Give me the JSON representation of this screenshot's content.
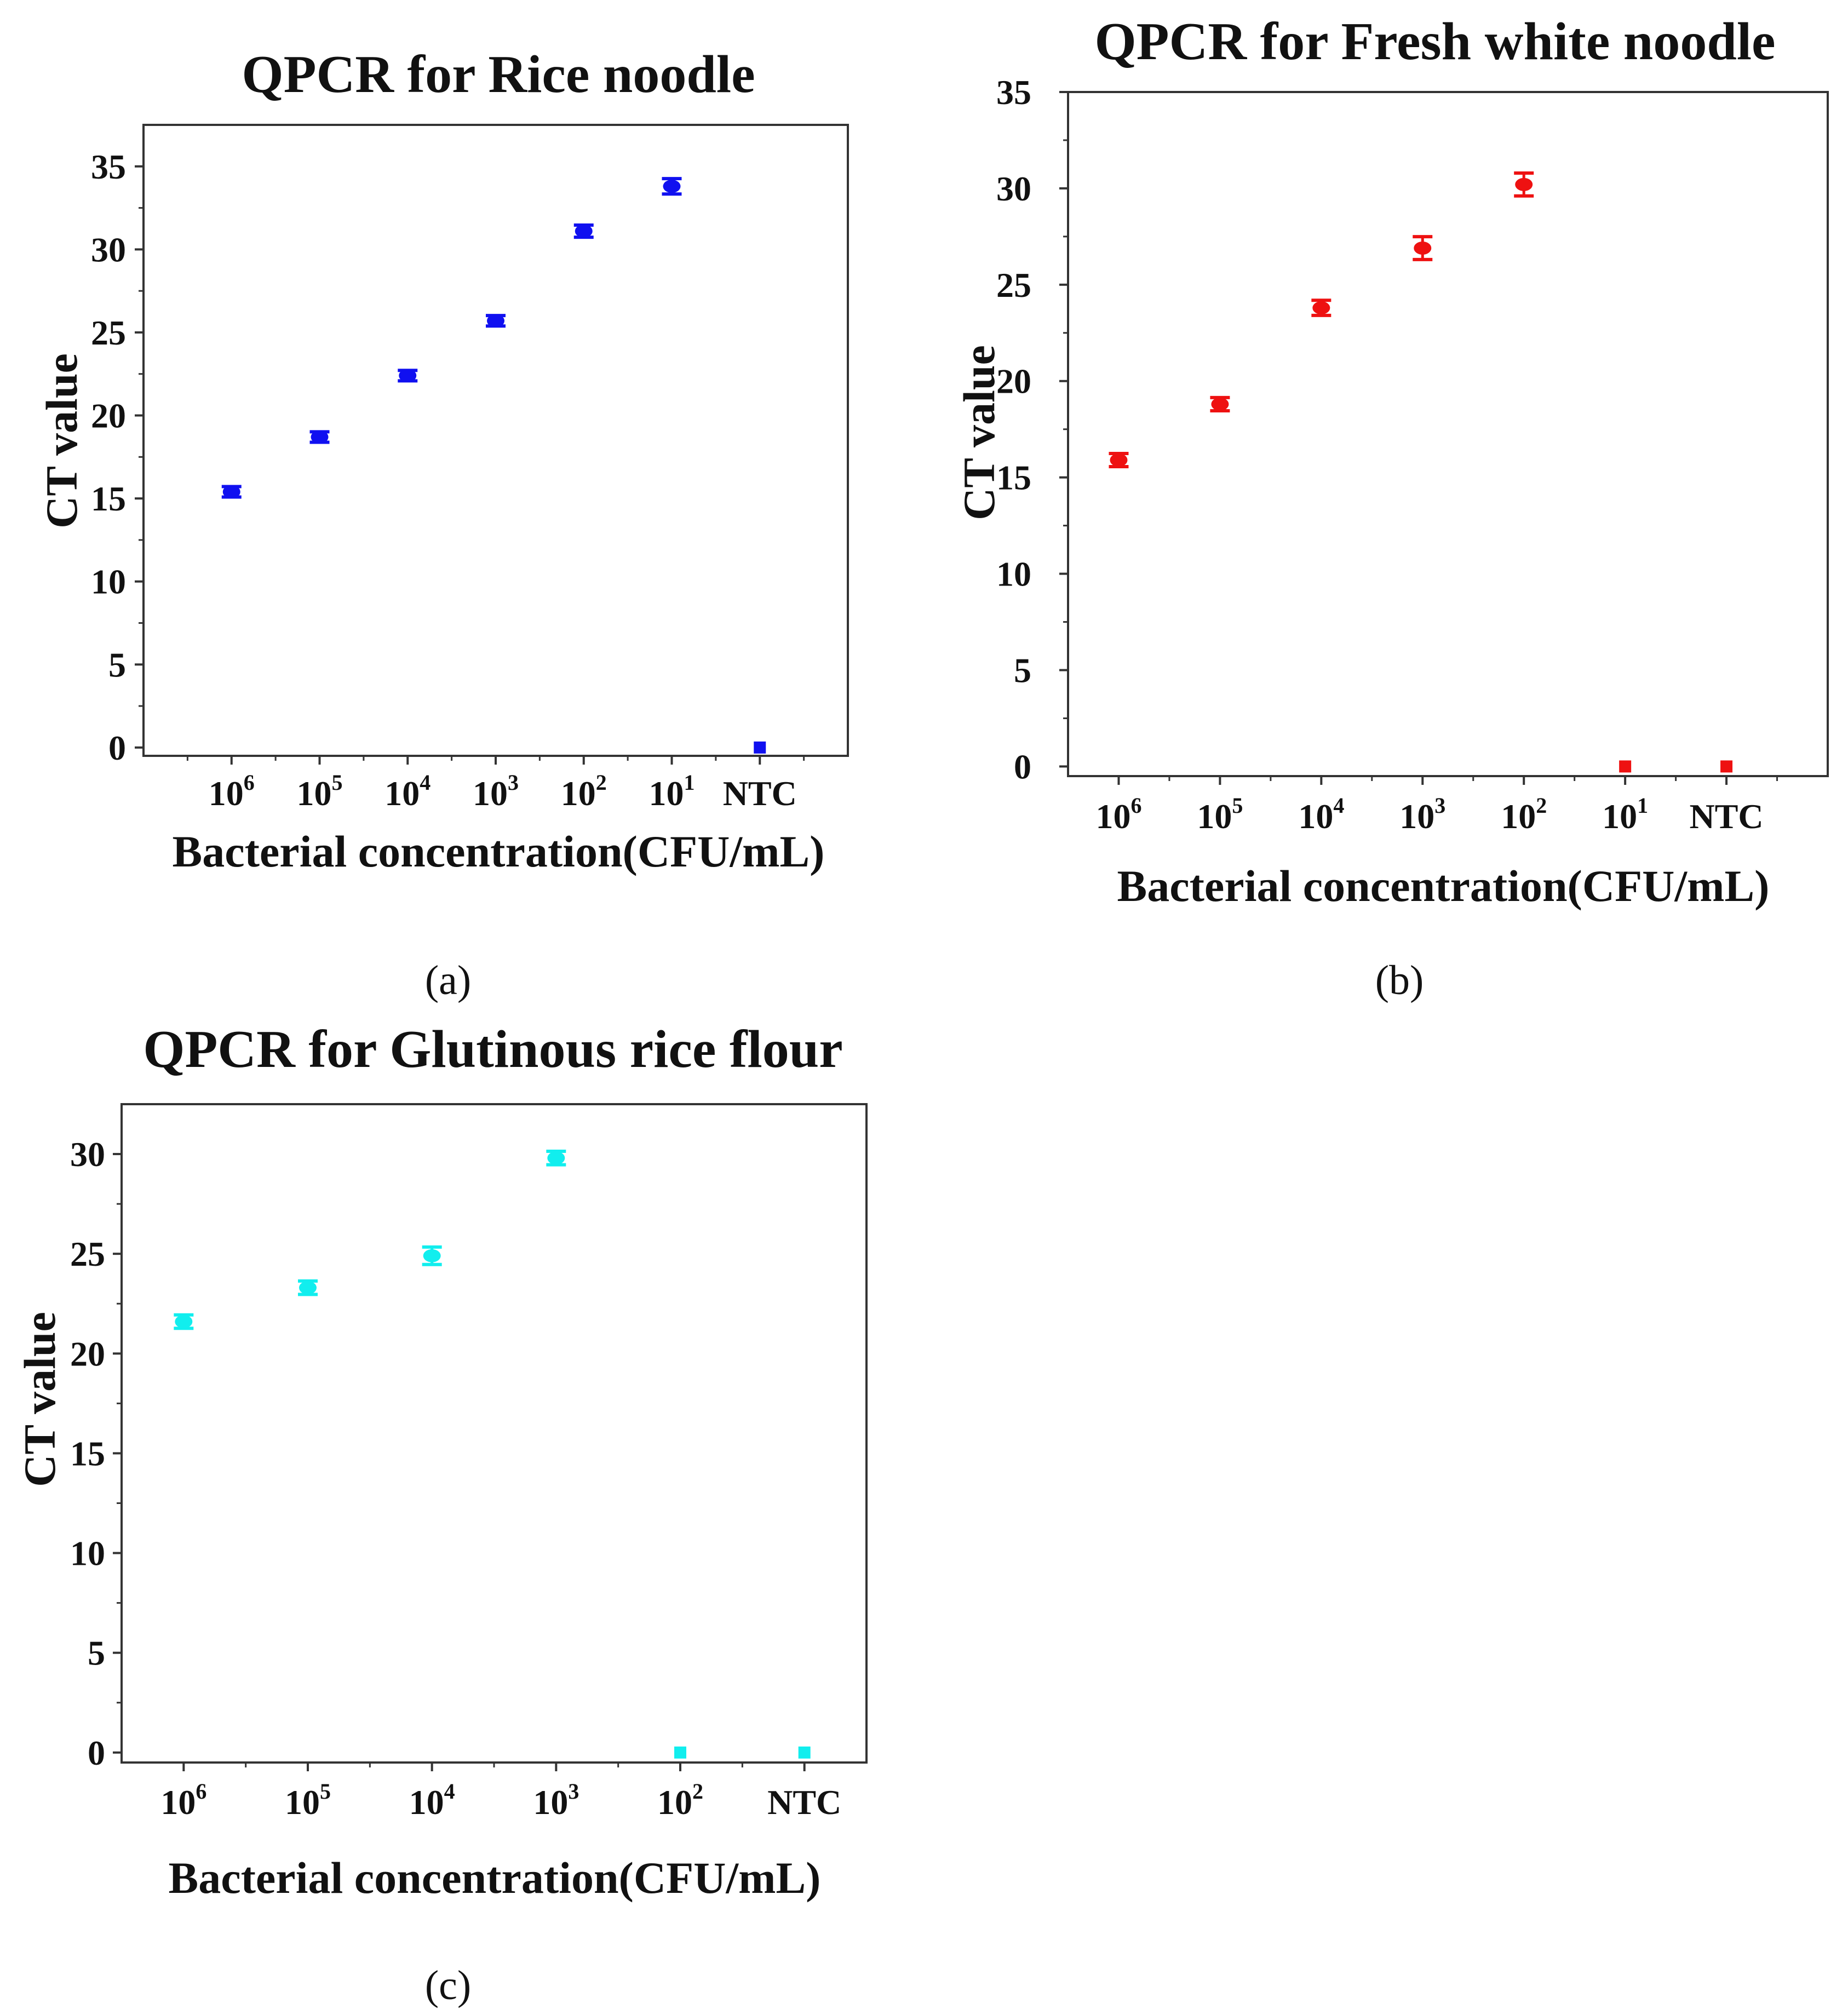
{
  "chart_data": [
    {
      "type": "scatter",
      "panel_label": "(a)",
      "title": "QPCR  for Rice noodle",
      "xlabel": "Bacterial concentration(CFU/mL)",
      "ylabel": "CT value",
      "color": "#1010f0",
      "categories": [
        {
          "base": "10",
          "exp": "6",
          "text": ""
        },
        {
          "base": "10",
          "exp": "5",
          "text": ""
        },
        {
          "base": "10",
          "exp": "4",
          "text": ""
        },
        {
          "base": "10",
          "exp": "3",
          "text": ""
        },
        {
          "base": "10",
          "exp": "2",
          "text": ""
        },
        {
          "base": "10",
          "exp": "1",
          "text": ""
        },
        {
          "base": "",
          "exp": "",
          "text": "NTC"
        }
      ],
      "yticks": [
        0,
        5,
        10,
        15,
        20,
        25,
        30,
        35
      ],
      "ylim": [
        -0.5,
        37.5
      ],
      "x_offset": 1,
      "xlim": [
        0,
        8
      ],
      "series": [
        {
          "name": "CT",
          "values": [
            15.4,
            18.7,
            22.4,
            25.7,
            31.1,
            33.8,
            0
          ],
          "errors": [
            0.15,
            0.15,
            0.15,
            0.15,
            0.2,
            0.3,
            0
          ]
        }
      ]
    },
    {
      "type": "scatter",
      "panel_label": "(b)",
      "title": "QPCR  for  Fresh white noodle",
      "xlabel": "Bacterial concentration(CFU/mL)",
      "ylabel": "CT value",
      "color": "#ee1111",
      "categories": [
        {
          "base": "10",
          "exp": "6",
          "text": ""
        },
        {
          "base": "10",
          "exp": "5",
          "text": ""
        },
        {
          "base": "10",
          "exp": "4",
          "text": ""
        },
        {
          "base": "10",
          "exp": "3",
          "text": ""
        },
        {
          "base": "10",
          "exp": "2",
          "text": ""
        },
        {
          "base": "10",
          "exp": "1",
          "text": ""
        },
        {
          "base": "",
          "exp": "",
          "text": "NTC"
        }
      ],
      "yticks": [
        0,
        5,
        10,
        15,
        20,
        25,
        30,
        35
      ],
      "ylim": [
        -0.5,
        35
      ],
      "x_offset": 0,
      "xlim": [
        -0.5,
        7
      ],
      "series": [
        {
          "name": "CT",
          "values": [
            15.9,
            18.8,
            23.8,
            26.9,
            30.2,
            0,
            0
          ],
          "errors": [
            0.2,
            0.2,
            0.25,
            0.45,
            0.45,
            0,
            0
          ]
        }
      ]
    },
    {
      "type": "scatter",
      "panel_label": "(c)",
      "title": "QPCR  for Glutinous rice flour",
      "xlabel": "Bacterial concentration(CFU/mL)",
      "ylabel": "CT value",
      "color": "#11eeee",
      "categories": [
        {
          "base": "10",
          "exp": "6",
          "text": ""
        },
        {
          "base": "10",
          "exp": "5",
          "text": ""
        },
        {
          "base": "10",
          "exp": "4",
          "text": ""
        },
        {
          "base": "10",
          "exp": "3",
          "text": ""
        },
        {
          "base": "10",
          "exp": "2",
          "text": ""
        },
        {
          "base": "",
          "exp": "",
          "text": "NTC"
        }
      ],
      "yticks": [
        0,
        5,
        10,
        15,
        20,
        25,
        30
      ],
      "ylim": [
        -0.5,
        32.5
      ],
      "x_offset": 0,
      "xlim": [
        -0.5,
        5.5
      ],
      "series": [
        {
          "name": "CT",
          "values": [
            21.6,
            23.3,
            24.9,
            29.8,
            0,
            0
          ],
          "errors": [
            0.2,
            0.2,
            0.3,
            0.2,
            0,
            0
          ]
        }
      ]
    }
  ]
}
